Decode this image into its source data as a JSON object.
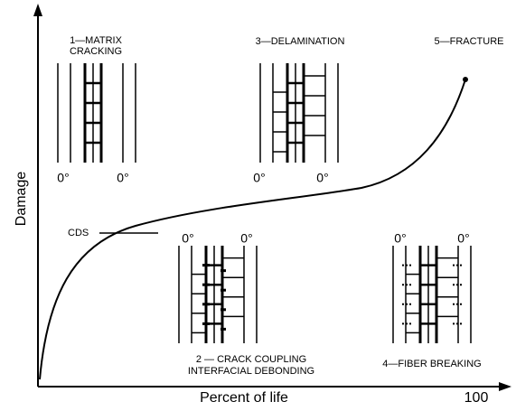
{
  "axes": {
    "y_label": "Damage",
    "x_label": "Percent of life",
    "x_end": "100"
  },
  "cds": "CDS",
  "stages": [
    {
      "lines": [
        "1—MATRIX",
        "CRACKING"
      ],
      "plies": [
        "0°",
        "0°"
      ]
    },
    {
      "lines": [
        "2 — CRACK COUPLING",
        "INTERFACIAL DEBONDING"
      ],
      "plies": [
        "0°",
        "0°"
      ]
    },
    {
      "lines": [
        "3—DELAMINATION"
      ],
      "plies": [
        "0°",
        "0°"
      ]
    },
    {
      "lines": [
        "4—FIBER BREAKING"
      ],
      "plies": [
        "0°",
        "0°"
      ]
    },
    {
      "lines": [
        "5—FRACTURE"
      ]
    }
  ]
}
